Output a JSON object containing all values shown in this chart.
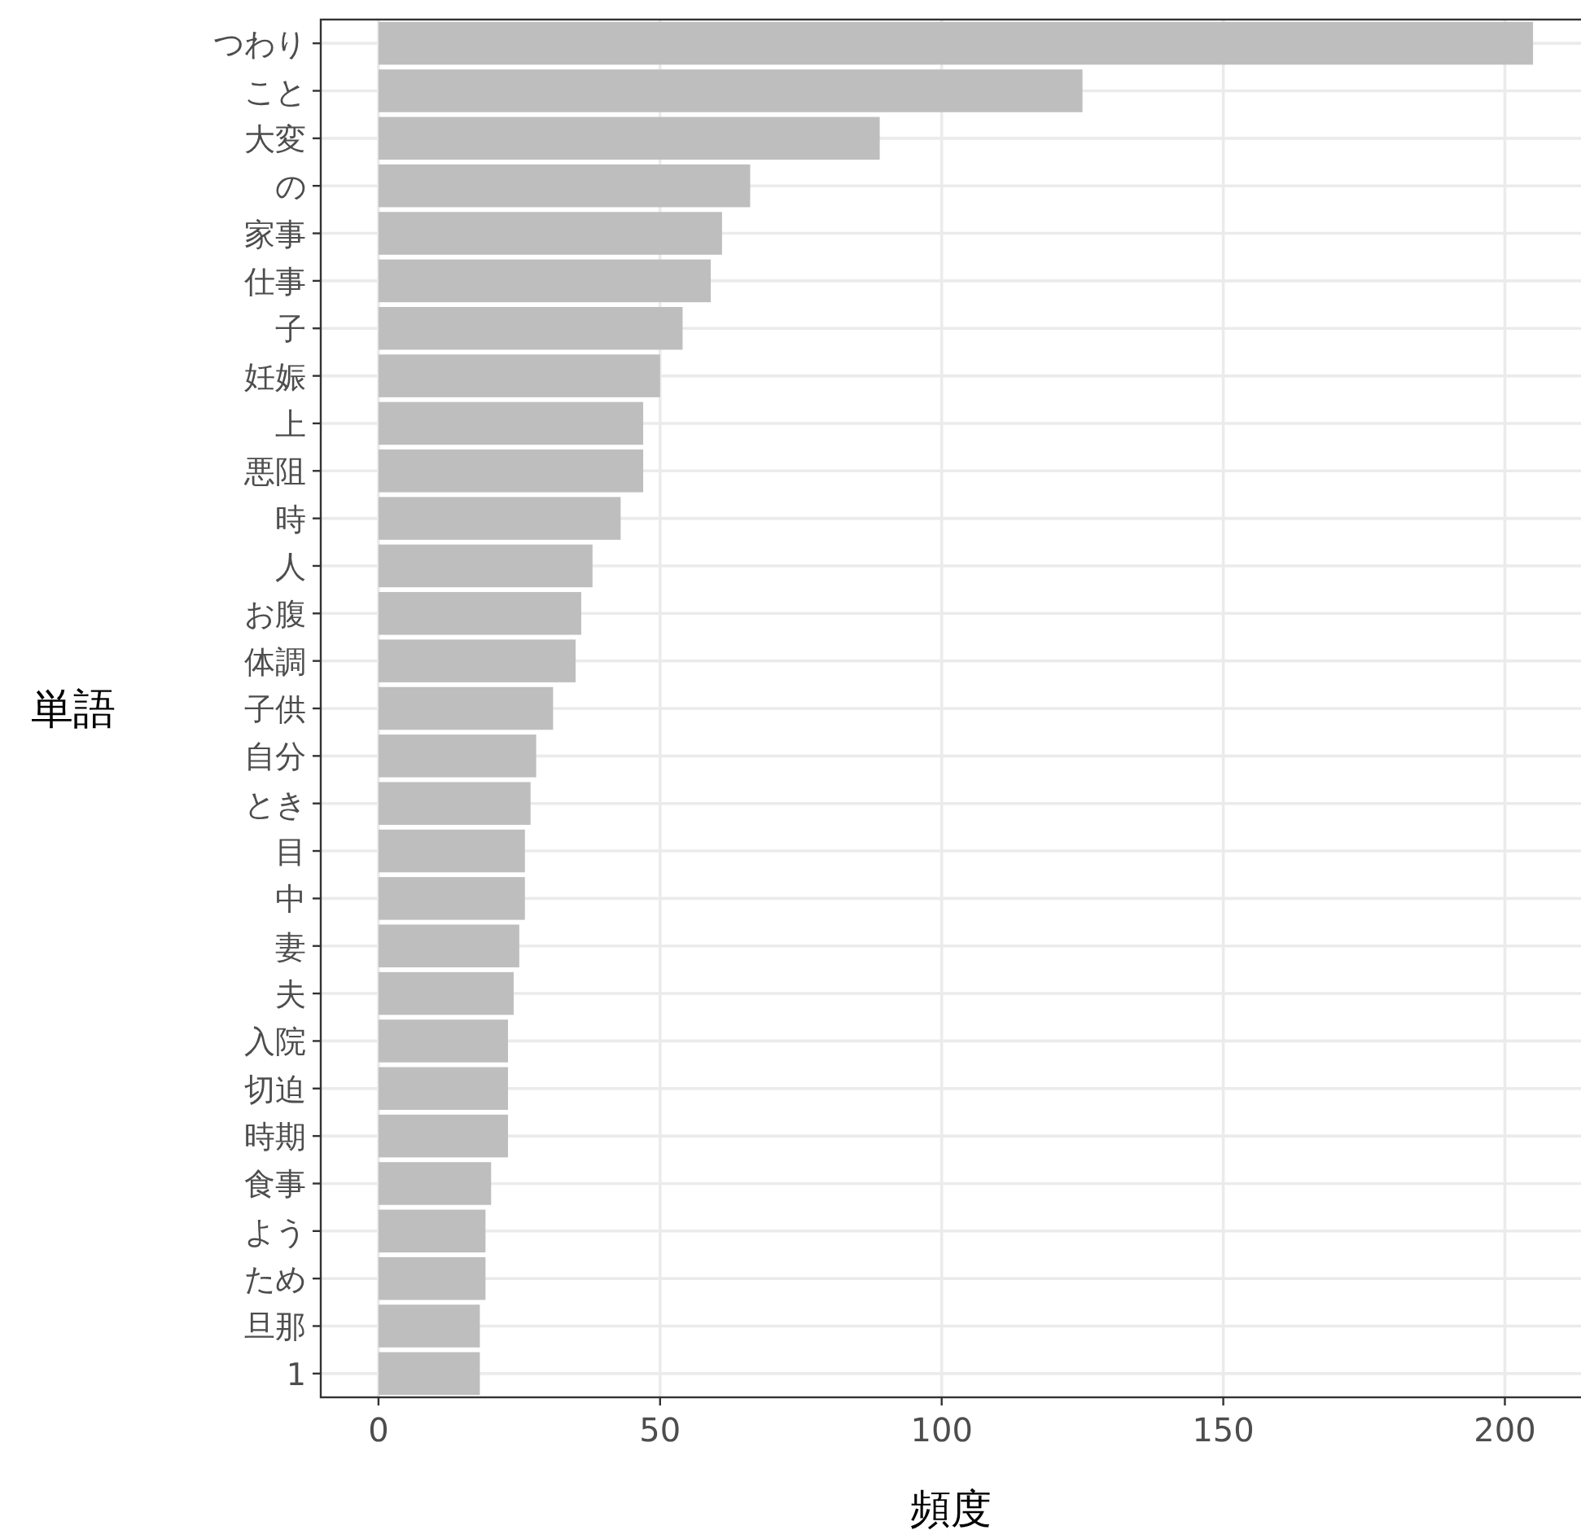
{
  "chart_data": {
    "type": "bar",
    "orientation": "horizontal",
    "xlabel": "頻度",
    "ylabel": "単語",
    "categories": [
      "つわり",
      "こと",
      "大変",
      "の",
      "家事",
      "仕事",
      "子",
      "妊娠",
      "上",
      "悪阻",
      "時",
      "人",
      "お腹",
      "体調",
      "子供",
      "自分",
      "とき",
      "目",
      "中",
      "妻",
      "夫",
      "入院",
      "切迫",
      "時期",
      "食事",
      "よう",
      "ため",
      "旦那",
      "1"
    ],
    "values": [
      205,
      125,
      89,
      66,
      61,
      59,
      54,
      50,
      47,
      47,
      43,
      38,
      36,
      35,
      31,
      28,
      27,
      26,
      26,
      25,
      24,
      23,
      23,
      23,
      20,
      19,
      19,
      18,
      18
    ],
    "color": "#bebebe",
    "xlim": [
      -10.25,
      215.25
    ],
    "xticks": [
      0,
      50,
      100,
      150,
      200
    ],
    "grid": true
  }
}
